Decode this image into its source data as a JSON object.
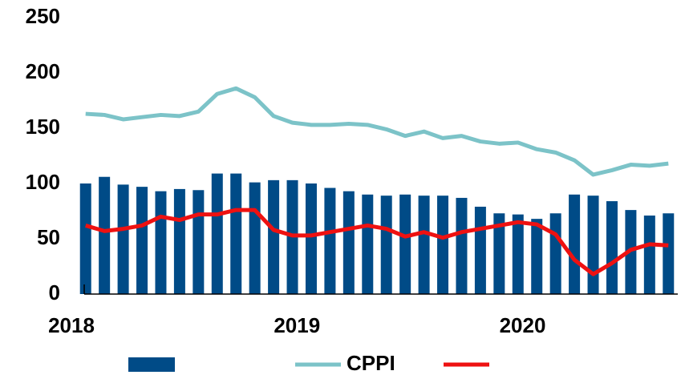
{
  "chart_data": {
    "type": "bar-line",
    "categories": [
      "2018",
      null,
      null,
      null,
      null,
      null,
      null,
      null,
      null,
      null,
      null,
      null,
      "2019",
      null,
      null,
      null,
      null,
      null,
      null,
      null,
      null,
      null,
      null,
      null,
      "2020",
      null,
      null,
      null,
      null,
      null,
      null,
      null
    ],
    "series": [
      {
        "type": "bar",
        "color": "#004b87",
        "values": [
          100,
          106,
          99,
          97,
          93,
          95,
          94,
          109,
          109,
          101,
          103,
          103,
          100,
          96,
          93,
          90,
          89,
          90,
          89,
          89,
          87,
          79,
          73,
          72,
          68,
          73,
          90,
          89,
          84,
          76,
          71,
          73
        ]
      },
      {
        "type": "line",
        "name": "CPPI",
        "color": "#7cc3c8",
        "values": [
          163,
          162,
          158,
          160,
          162,
          161,
          165,
          181,
          186,
          178,
          161,
          155,
          153,
          153,
          154,
          153,
          149,
          143,
          147,
          141,
          143,
          138,
          136,
          137,
          131,
          128,
          121,
          108,
          112,
          117,
          116,
          118
        ]
      },
      {
        "type": "line",
        "color": "#ee1111",
        "values": [
          62,
          57,
          59,
          62,
          70,
          67,
          72,
          72,
          76,
          76,
          58,
          53,
          53,
          56,
          59,
          62,
          59,
          52,
          56,
          51,
          56,
          59,
          62,
          65,
          63,
          54,
          31,
          18,
          28,
          40,
          45,
          44
        ]
      }
    ],
    "ylim": [
      0,
      250
    ],
    "yticks": [
      0,
      50,
      100,
      150,
      200,
      250
    ]
  }
}
